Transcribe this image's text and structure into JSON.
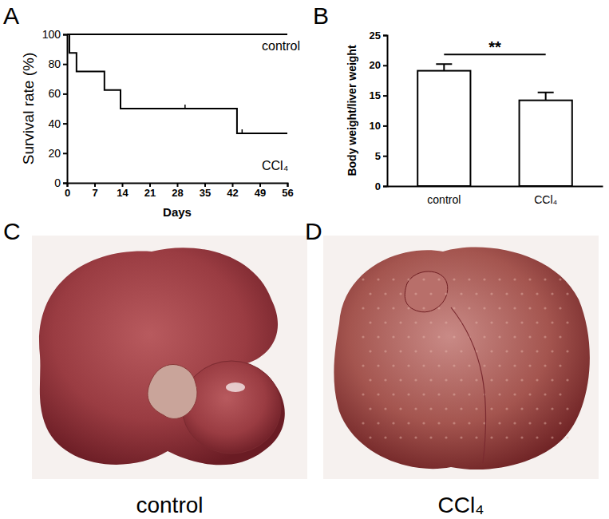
{
  "chart_data": [
    {
      "type": "line",
      "title": "A",
      "x_label": "Days",
      "y_label": "Survival rate (%)",
      "xlim": [
        0,
        56
      ],
      "xticks": [
        0,
        7,
        14,
        21,
        28,
        35,
        42,
        49,
        56
      ],
      "ylim": [
        0,
        100
      ],
      "yticks": [
        0,
        20,
        40,
        60,
        80,
        100
      ],
      "line_style": "step",
      "series": [
        {
          "name": "control",
          "color": "#000000",
          "x": [
            0,
            56
          ],
          "values": [
            100,
            100
          ]
        },
        {
          "name": "CCl₄",
          "color": "#000000",
          "x": [
            0,
            0.6,
            2.4,
            9.5,
            13.6,
            43.2,
            56
          ],
          "values": [
            100,
            87.5,
            75,
            62.5,
            50,
            33.3,
            33.3
          ],
          "censor_x": [
            30,
            44.5
          ],
          "censor_values": [
            50,
            33.3
          ]
        }
      ]
    },
    {
      "type": "bar",
      "title": "B",
      "y_label": "Body weight/liver weight",
      "categories": [
        "control",
        "CCl₄"
      ],
      "values": [
        19.1,
        14.2
      ],
      "errors": [
        1.1,
        1.3
      ],
      "color": "#ffffff",
      "ylim": [
        0,
        25
      ],
      "yticks": [
        0,
        5,
        10,
        15,
        20,
        25
      ],
      "annotations": [
        "**"
      ]
    },
    {
      "type": "image",
      "title": "C",
      "caption": "control"
    },
    {
      "type": "image",
      "title": "D",
      "caption": "CCl₄"
    }
  ]
}
